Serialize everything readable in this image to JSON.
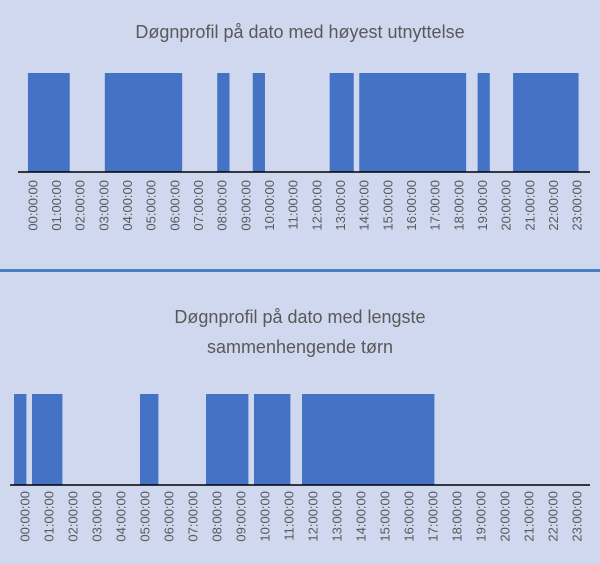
{
  "chart_data": [
    {
      "type": "bar",
      "title": "Døgnprofil på dato med høyest utnyttelse",
      "color": "#4472c4",
      "ylim": [
        0,
        1
      ],
      "categories": [
        "00:00:00",
        null,
        null,
        null,
        "01:00:00",
        null,
        null,
        null,
        "02:00:00",
        null,
        null,
        null,
        "03:00:00",
        null,
        null,
        null,
        "04:00:00",
        null,
        null,
        null,
        "05:00:00",
        null,
        null,
        null,
        "06:00:00",
        null,
        null,
        null,
        "07:00:00",
        null,
        null,
        null,
        "08:00:00",
        null,
        null,
        null,
        "09:00:00",
        null,
        null,
        null,
        "10:00:00",
        null,
        null,
        null,
        "11:00:00",
        null,
        null,
        null,
        "12:00:00",
        null,
        null,
        null,
        "13:00:00",
        null,
        null,
        null,
        "14:00:00",
        null,
        null,
        null,
        "15:00:00",
        null,
        null,
        null,
        "16:00:00",
        null,
        null,
        null,
        "17:00:00",
        null,
        null,
        null,
        "18:00:00",
        null,
        null,
        null,
        "19:00:00",
        null,
        null,
        null,
        "20:00:00",
        null,
        null,
        null,
        "21:00:00",
        null,
        null,
        null,
        "22:00:00",
        null,
        null,
        null,
        "23:00:00",
        null,
        null,
        null
      ],
      "values": [
        0,
        1,
        1,
        1,
        1,
        1,
        1,
        1,
        0,
        0,
        0,
        0,
        0,
        0,
        1,
        1,
        1,
        1,
        1,
        1,
        1,
        1,
        1,
        1,
        1,
        1,
        1,
        0,
        0,
        0,
        0,
        0,
        0,
        1,
        1,
        0,
        0,
        0,
        0,
        1,
        1,
        0,
        0,
        0,
        0,
        0,
        0,
        0,
        0,
        0,
        0,
        0,
        1,
        1,
        1,
        1,
        0,
        1,
        1,
        1,
        1,
        1,
        1,
        1,
        1,
        1,
        1,
        1,
        1,
        1,
        1,
        1,
        1,
        1,
        1,
        0,
        0,
        1,
        1,
        0,
        0,
        0,
        0,
        1,
        1,
        1,
        1,
        1,
        1,
        1,
        1,
        1,
        1,
        1,
        0,
        0
      ]
    },
    {
      "type": "bar",
      "title": "Døgnprofil på dato med lengste sammenhengende tørn",
      "color": "#4472c4",
      "ylim": [
        0,
        1
      ],
      "categories": [
        "00:00:00",
        null,
        null,
        null,
        "01:00:00",
        null,
        null,
        null,
        "02:00:00",
        null,
        null,
        null,
        "03:00:00",
        null,
        null,
        null,
        "04:00:00",
        null,
        null,
        null,
        "05:00:00",
        null,
        null,
        null,
        "06:00:00",
        null,
        null,
        null,
        "07:00:00",
        null,
        null,
        null,
        "08:00:00",
        null,
        null,
        null,
        "09:00:00",
        null,
        null,
        null,
        "10:00:00",
        null,
        null,
        null,
        "11:00:00",
        null,
        null,
        null,
        "12:00:00",
        null,
        null,
        null,
        "13:00:00",
        null,
        null,
        null,
        "14:00:00",
        null,
        null,
        null,
        "15:00:00",
        null,
        null,
        null,
        "16:00:00",
        null,
        null,
        null,
        "17:00:00",
        null,
        null,
        null,
        "18:00:00",
        null,
        null,
        null,
        "19:00:00",
        null,
        null,
        null,
        "20:00:00",
        null,
        null,
        null,
        "21:00:00",
        null,
        null,
        null,
        "22:00:00",
        null,
        null,
        null,
        "23:00:00",
        null,
        null,
        null
      ],
      "values": [
        1,
        1,
        0,
        1,
        1,
        1,
        1,
        1,
        0,
        0,
        0,
        0,
        0,
        0,
        0,
        0,
        0,
        0,
        0,
        0,
        0,
        1,
        1,
        1,
        0,
        0,
        0,
        0,
        0,
        0,
        0,
        0,
        1,
        1,
        1,
        1,
        1,
        1,
        1,
        0,
        1,
        1,
        1,
        1,
        1,
        1,
        0,
        0,
        1,
        1,
        1,
        1,
        1,
        1,
        1,
        1,
        1,
        1,
        1,
        1,
        1,
        1,
        1,
        1,
        1,
        1,
        1,
        1,
        1,
        1,
        0,
        0,
        0,
        0,
        0,
        0,
        0,
        0,
        0,
        0,
        0,
        0,
        0,
        0,
        0,
        0,
        0,
        0,
        0,
        0,
        0,
        0,
        0,
        0,
        0,
        0
      ]
    }
  ]
}
